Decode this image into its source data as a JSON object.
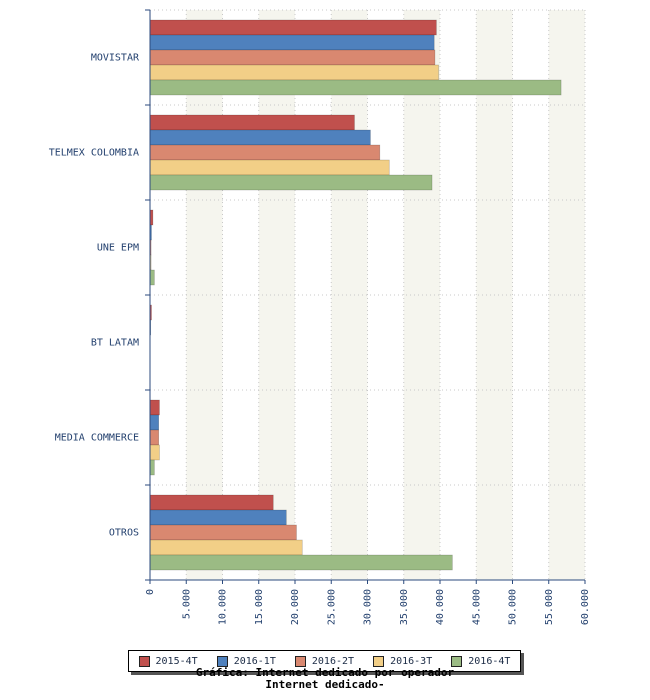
{
  "chart_data": {
    "type": "bar",
    "orientation": "horizontal",
    "title": "Gráfica: Internet dedicado por operador",
    "subtitle": "Internet dedicado-",
    "categories": [
      "MOVISTAR",
      "TELMEX COLOMBIA",
      "UNE EPM",
      "BT LATAM",
      "MEDIA COMMERCE",
      "OTROS"
    ],
    "series": [
      {
        "name": "2015-4T",
        "color": "#c0504d",
        "values": [
          39500,
          28200,
          400,
          200,
          1300,
          17000
        ]
      },
      {
        "name": "2016-1T",
        "color": "#4f81bd",
        "values": [
          39200,
          30400,
          200,
          100,
          1200,
          18800
        ]
      },
      {
        "name": "2016-2T",
        "color": "#d98870",
        "values": [
          39300,
          31700,
          150,
          0,
          1200,
          20200
        ]
      },
      {
        "name": "2016-3T",
        "color": "#f2cf87",
        "values": [
          39800,
          33000,
          150,
          0,
          1300,
          21000
        ]
      },
      {
        "name": "2016-4T",
        "color": "#9bbb84",
        "values": [
          56700,
          38900,
          600,
          0,
          600,
          41700
        ]
      }
    ],
    "xlim": [
      0,
      60000
    ],
    "x_ticks": [
      "0",
      "5.000",
      "10.000",
      "15.000",
      "20.000",
      "25.000",
      "30.000",
      "35.000",
      "40.000",
      "45.000",
      "50.000",
      "55.000",
      "60.000"
    ],
    "grid": true,
    "legend_position": "bottom"
  }
}
